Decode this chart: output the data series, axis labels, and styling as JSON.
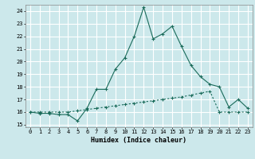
{
  "xlabel": "Humidex (Indice chaleur)",
  "bg_color": "#cce8eb",
  "grid_color": "#ffffff",
  "line_color": "#1a6b5a",
  "xlim": [
    -0.5,
    23.5
  ],
  "ylim": [
    14.8,
    24.5
  ],
  "xticks": [
    0,
    1,
    2,
    3,
    4,
    5,
    6,
    7,
    8,
    9,
    10,
    11,
    12,
    13,
    14,
    15,
    16,
    17,
    18,
    19,
    20,
    21,
    22,
    23
  ],
  "yticks": [
    15,
    16,
    17,
    18,
    19,
    20,
    21,
    22,
    23,
    24
  ],
  "curve1_x": [
    0,
    1,
    2,
    3,
    4,
    5,
    6,
    7,
    8,
    9,
    10,
    11,
    12,
    13,
    14,
    15,
    16,
    17,
    18,
    19,
    20,
    21,
    22,
    23
  ],
  "curve1_y": [
    16.0,
    15.9,
    15.9,
    15.8,
    15.8,
    15.3,
    16.3,
    17.8,
    17.8,
    19.4,
    20.3,
    22.0,
    24.3,
    21.8,
    22.2,
    22.8,
    21.2,
    19.7,
    18.8,
    18.2,
    18.0,
    16.4,
    17.0,
    16.3
  ],
  "curve2_x": [
    0,
    1,
    2,
    3,
    4,
    5,
    6,
    7,
    8,
    9,
    10,
    11,
    12,
    13,
    14,
    15,
    16,
    17,
    18,
    19,
    20,
    21,
    22,
    23
  ],
  "curve2_y": [
    16.0,
    16.0,
    16.0,
    16.0,
    16.0,
    16.1,
    16.2,
    16.3,
    16.4,
    16.5,
    16.6,
    16.7,
    16.8,
    16.9,
    17.0,
    17.1,
    17.2,
    17.35,
    17.5,
    17.65,
    16.0,
    16.0,
    16.0,
    16.0
  ],
  "xlabel_fontsize": 6,
  "tick_fontsize": 5
}
